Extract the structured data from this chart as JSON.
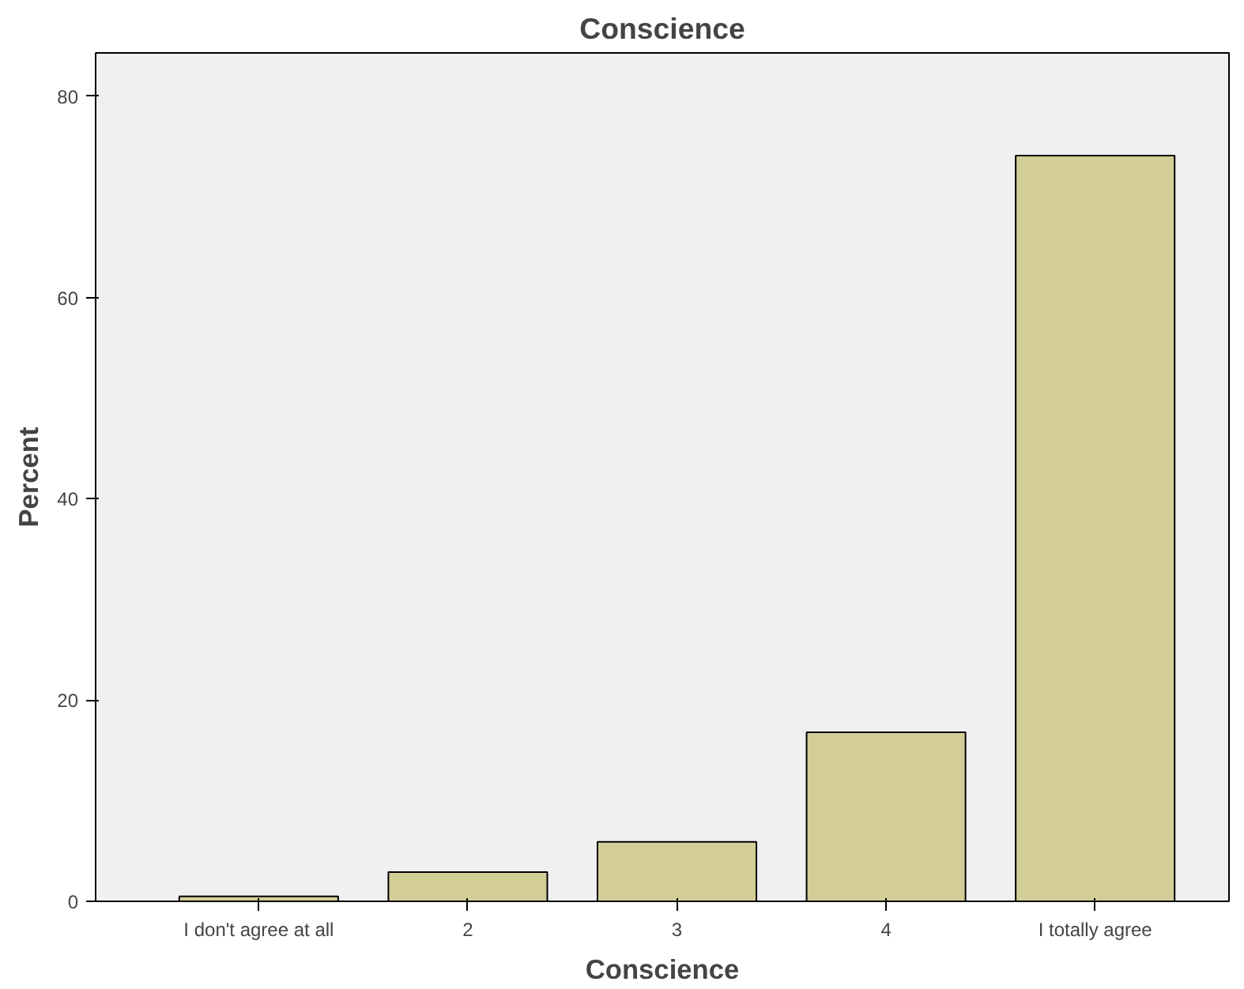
{
  "chart_data": {
    "type": "bar",
    "title": "Conscience",
    "xlabel": "Conscience",
    "ylabel": "Percent",
    "categories": [
      "I don't agree at all",
      "2",
      "3",
      "4",
      "I totally agree"
    ],
    "values": [
      0.5,
      2.9,
      5.9,
      16.8,
      74.1
    ],
    "color": "#d3ce97",
    "ylim": [
      0,
      84.3
    ],
    "yticks": [
      0,
      20,
      40,
      60,
      80
    ],
    "grid": false
  }
}
